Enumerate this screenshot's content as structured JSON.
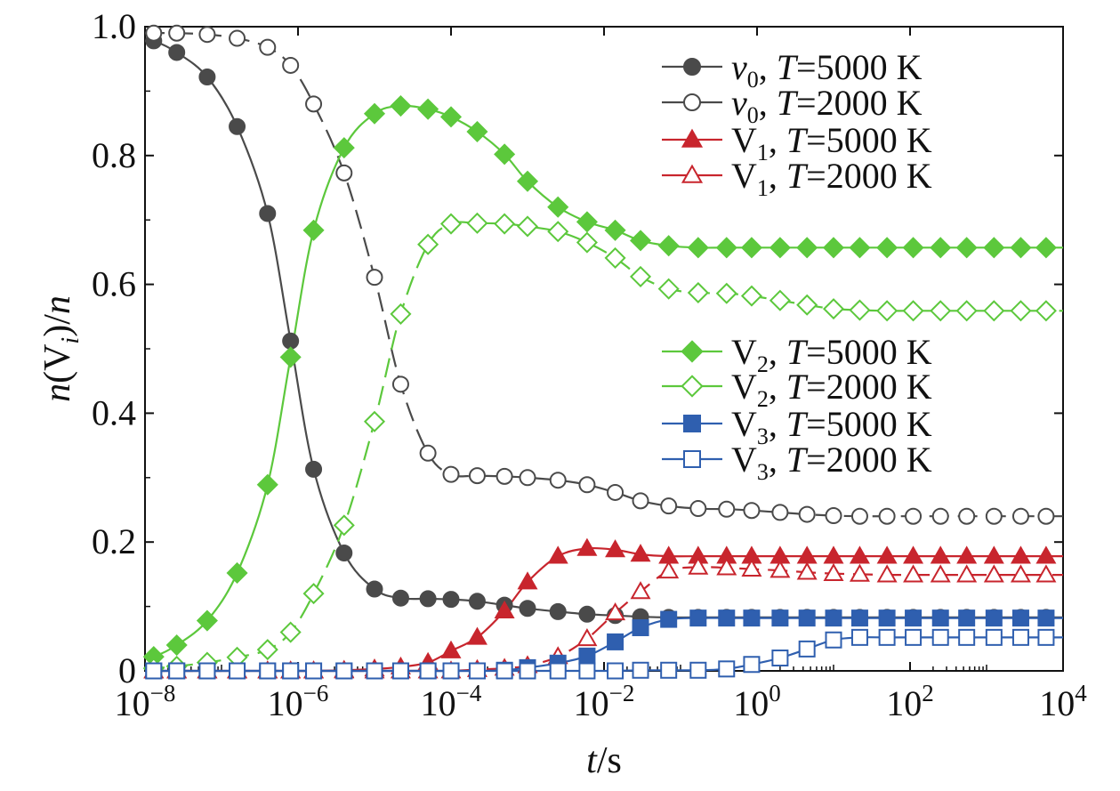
{
  "chart_data": {
    "type": "line",
    "xscale": "log",
    "xlim": [
      1e-08,
      10000
    ],
    "ylim": [
      0,
      1.0
    ],
    "xlabel": {
      "var": "t",
      "unit": "/s"
    },
    "ylabel": {
      "pre": "n(V",
      "sub": "i",
      "post": ")/n"
    },
    "x_ticks": [
      {
        "value": 1e-08,
        "base": "10",
        "exp": "−8"
      },
      {
        "value": 1e-06,
        "base": "10",
        "exp": "−6"
      },
      {
        "value": 0.0001,
        "base": "10",
        "exp": "−4"
      },
      {
        "value": 0.01,
        "base": "10",
        "exp": "−2"
      },
      {
        "value": 1,
        "base": "10",
        "exp": "0"
      },
      {
        "value": 100,
        "base": "10",
        "exp": "2"
      },
      {
        "value": 10000,
        "base": "10",
        "exp": "4"
      }
    ],
    "y_ticks": [
      {
        "value": 0,
        "label": "0"
      },
      {
        "value": 0.2,
        "label": "0.2"
      },
      {
        "value": 0.4,
        "label": "0.4"
      },
      {
        "value": 0.6,
        "label": "0.6"
      },
      {
        "value": 0.8,
        "label": "0.8"
      },
      {
        "value": 1.0,
        "label": "1.0"
      }
    ],
    "marker_x": [
      1.3e-08,
      2.6e-08,
      6.5e-08,
      1.6e-07,
      4e-07,
      8e-07,
      1.6e-06,
      4e-06,
      1e-05,
      2.2e-05,
      5e-05,
      0.0001,
      0.00022,
      0.0005,
      0.001,
      0.0025,
      0.006,
      0.014,
      0.03,
      0.07,
      0.17,
      0.4,
      0.85,
      2,
      4.5,
      10,
      22,
      50,
      110,
      250,
      550,
      1250,
      2800,
      6000
    ],
    "series": [
      {
        "name": "v₀, T=5000 K",
        "legend": {
          "var": "v",
          "sub": "0",
          "text": "=5000 K"
        },
        "color": "#4a4a4a",
        "marker": "circle",
        "filled": true,
        "dash": false,
        "y": [
          0.978,
          0.96,
          0.922,
          0.845,
          0.71,
          0.512,
          0.313,
          0.183,
          0.127,
          0.113,
          0.112,
          0.111,
          0.108,
          0.102,
          0.097,
          0.092,
          0.088,
          0.086,
          0.084,
          0.083,
          0.083,
          0.083,
          0.083,
          0.083,
          0.083,
          0.083,
          0.083,
          0.083,
          0.083,
          0.083,
          0.083,
          0.083,
          0.083,
          0.083
        ]
      },
      {
        "name": "v₀, T=2000 K",
        "legend": {
          "var": "v",
          "sub": "0",
          "text": "=2000 K"
        },
        "color": "#4a4a4a",
        "marker": "circle",
        "filled": false,
        "dash": true,
        "y": [
          0.99,
          0.99,
          0.988,
          0.982,
          0.968,
          0.94,
          0.88,
          0.773,
          0.611,
          0.445,
          0.338,
          0.305,
          0.303,
          0.302,
          0.3,
          0.296,
          0.289,
          0.277,
          0.264,
          0.256,
          0.252,
          0.251,
          0.249,
          0.246,
          0.243,
          0.241,
          0.24,
          0.24,
          0.24,
          0.24,
          0.24,
          0.24,
          0.24,
          0.24
        ]
      },
      {
        "name": "V₁, T=5000 K",
        "legend": {
          "var": "V",
          "sub": "1",
          "text": "=5000 K"
        },
        "color": "#c8252d",
        "marker": "triangle",
        "filled": true,
        "dash": false,
        "y": [
          0,
          0,
          0,
          0,
          0,
          0,
          0,
          0.001,
          0.003,
          0.006,
          0.013,
          0.031,
          0.052,
          0.093,
          0.138,
          0.178,
          0.19,
          0.188,
          0.181,
          0.178,
          0.178,
          0.178,
          0.178,
          0.178,
          0.178,
          0.178,
          0.178,
          0.178,
          0.178,
          0.178,
          0.178,
          0.178,
          0.178,
          0.178
        ]
      },
      {
        "name": "V₁, T=2000 K",
        "legend": {
          "var": "V",
          "sub": "1",
          "text": "=2000 K"
        },
        "color": "#c8252d",
        "marker": "triangle",
        "filled": false,
        "dash": true,
        "y": [
          0,
          0,
          0,
          0,
          0,
          0,
          0,
          0,
          0,
          0,
          0,
          0,
          0.002,
          0.004,
          0.008,
          0.022,
          0.05,
          0.09,
          0.123,
          0.155,
          0.161,
          0.16,
          0.158,
          0.156,
          0.153,
          0.151,
          0.15,
          0.149,
          0.149,
          0.149,
          0.149,
          0.149,
          0.149,
          0.149
        ]
      },
      {
        "name": "V₂, T=5000 K",
        "legend": {
          "var": "V",
          "sub": "2",
          "text": "=5000 K"
        },
        "color": "#5cc83c",
        "marker": "diamond",
        "filled": true,
        "dash": false,
        "y": [
          0.022,
          0.04,
          0.078,
          0.152,
          0.289,
          0.487,
          0.684,
          0.812,
          0.865,
          0.877,
          0.872,
          0.86,
          0.837,
          0.802,
          0.76,
          0.72,
          0.697,
          0.684,
          0.668,
          0.66,
          0.657,
          0.657,
          0.657,
          0.657,
          0.657,
          0.657,
          0.657,
          0.657,
          0.657,
          0.657,
          0.657,
          0.657,
          0.657,
          0.657
        ]
      },
      {
        "name": "V₂, T=2000 K",
        "legend": {
          "var": "V",
          "sub": "2",
          "text": "=2000 K"
        },
        "color": "#5cc83c",
        "marker": "diamond",
        "filled": false,
        "dash": true,
        "y": [
          0.004,
          0.007,
          0.013,
          0.021,
          0.033,
          0.06,
          0.12,
          0.226,
          0.387,
          0.554,
          0.662,
          0.694,
          0.695,
          0.694,
          0.69,
          0.682,
          0.665,
          0.641,
          0.612,
          0.593,
          0.587,
          0.586,
          0.582,
          0.575,
          0.568,
          0.562,
          0.56,
          0.559,
          0.559,
          0.559,
          0.559,
          0.559,
          0.559,
          0.559
        ]
      },
      {
        "name": "V₃, T=5000 K",
        "legend": {
          "var": "V",
          "sub": "3",
          "text": "=5000 K"
        },
        "color": "#2f5faf",
        "marker": "square",
        "filled": true,
        "dash": false,
        "y": [
          0,
          0,
          0,
          0,
          0,
          0,
          0,
          0,
          0,
          0,
          0,
          0,
          0,
          0.001,
          0.005,
          0.012,
          0.023,
          0.045,
          0.067,
          0.08,
          0.082,
          0.082,
          0.082,
          0.082,
          0.082,
          0.082,
          0.082,
          0.082,
          0.082,
          0.082,
          0.082,
          0.082,
          0.082,
          0.082
        ]
      },
      {
        "name": "V₃, T=2000 K",
        "legend": {
          "var": "V",
          "sub": "3",
          "text": "=2000 K"
        },
        "color": "#2f5faf",
        "marker": "square",
        "filled": false,
        "dash": false,
        "y": [
          0,
          0,
          0,
          0,
          0,
          0,
          0,
          0,
          0,
          0,
          0,
          0,
          0,
          0,
          0,
          0,
          0,
          0,
          0.001,
          0.001,
          0.001,
          0.003,
          0.01,
          0.02,
          0.034,
          0.048,
          0.052,
          0.052,
          0.052,
          0.052,
          0.052,
          0.052,
          0.052,
          0.052
        ]
      }
    ],
    "legend_positions": [
      "upper-right",
      "middle-right"
    ]
  }
}
